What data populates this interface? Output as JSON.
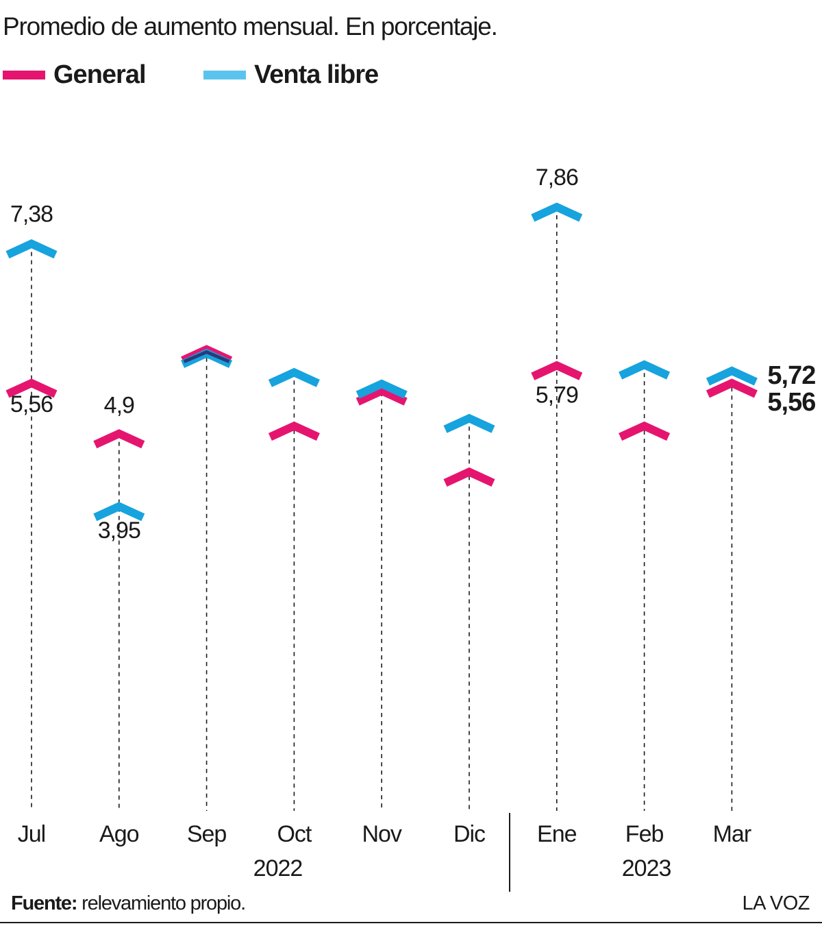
{
  "subtitle": "Promedio de aumento mensual. En porcentaje.",
  "legend": [
    {
      "label": "General",
      "color": "#e5156f"
    },
    {
      "label": "Venta libre",
      "color": "#5bc4ee"
    }
  ],
  "source": {
    "label": "Fuente:",
    "text": " relevamiento propio."
  },
  "brand": "LA VOZ",
  "chart_data": {
    "type": "scatter",
    "marker": "chevron",
    "categories": [
      "Jul",
      "Ago",
      "Sep",
      "Oct",
      "Nov",
      "Dic",
      "Ene",
      "Feb",
      "Mar"
    ],
    "year_groups": [
      {
        "label": "2022",
        "months": [
          "Jul",
          "Ago",
          "Sep",
          "Oct",
          "Nov",
          "Dic"
        ]
      },
      {
        "label": "2023",
        "months": [
          "Ene",
          "Feb",
          "Mar"
        ]
      }
    ],
    "series": [
      {
        "name": "General",
        "color": "#e5156f",
        "values": [
          5.56,
          4.9,
          6.0,
          5.0,
          5.46,
          4.4,
          5.79,
          5.0,
          5.56
        ],
        "labels": [
          "5,56",
          "4,9",
          null,
          null,
          null,
          null,
          "5,79",
          null,
          "5,56"
        ]
      },
      {
        "name": "Venta libre",
        "color": "#17a3dd",
        "values": [
          7.38,
          3.95,
          5.95,
          5.7,
          5.55,
          5.1,
          7.86,
          5.8,
          5.72
        ],
        "labels": [
          "7,38",
          "3,95",
          null,
          null,
          null,
          null,
          "7,86",
          null,
          "5,72"
        ]
      }
    ],
    "overlap_color": "#2b3a7a",
    "ylim": [
      0,
      9
    ],
    "grid": false
  }
}
